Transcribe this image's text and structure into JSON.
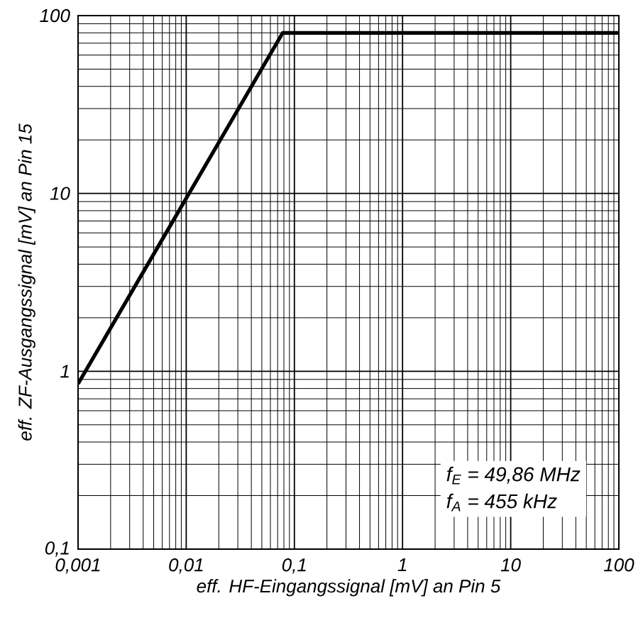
{
  "chart_data": {
    "type": "line",
    "log": "xy",
    "grid": true,
    "xlabel": "eff. HF-Eingangssignal [mV] an Pin 5",
    "ylabel": "eff. ZF-Ausgangssignal [mV] an Pin 15",
    "xlim": [
      0.001,
      100
    ],
    "ylim": [
      0.1,
      100
    ],
    "xticks": [
      {
        "value": 0.001,
        "label": "0,001"
      },
      {
        "value": 0.01,
        "label": "0,01"
      },
      {
        "value": 0.1,
        "label": "0,1"
      },
      1,
      10,
      100
    ],
    "yticks": [
      {
        "value": 0.1,
        "label": "0,1"
      },
      1,
      10,
      100
    ],
    "x": [
      0.001,
      0.078,
      100
    ],
    "series": [
      {
        "color": "#000000",
        "values": [
          0.85,
          80,
          80
        ]
      }
    ],
    "annotations": [
      "f$_{E}$ = 49,86 MHz",
      "f$_{A}$ = 455 kHz"
    ]
  }
}
